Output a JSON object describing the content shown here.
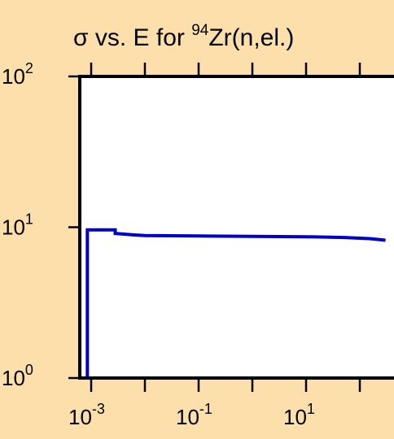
{
  "chart_data": {
    "type": "line",
    "title_parts": [
      "σ vs. E for ",
      "94",
      "Zr(n,el.)"
    ],
    "xlabel": "",
    "ylabel": "",
    "x_scale": "log",
    "y_scale": "log",
    "xlim": [
      0.0005,
      350
    ],
    "ylim": [
      1,
      100
    ],
    "x_ticks": [
      {
        "base": "10",
        "exp": "-3",
        "value": 0.001
      },
      {
        "base": "10",
        "exp": "-1",
        "value": 0.1
      },
      {
        "base": "10",
        "exp": "1",
        "value": 10
      }
    ],
    "y_ticks": [
      {
        "base": "10",
        "exp": "0",
        "value": 1
      },
      {
        "base": "10",
        "exp": "1",
        "value": 10
      },
      {
        "base": "10",
        "exp": "2",
        "value": 100
      }
    ],
    "x_minor_ticks": [
      0.01,
      1,
      100
    ],
    "grid": false,
    "series": [
      {
        "color": "#0000cc",
        "step": true,
        "x": [
          0.00085,
          0.00085,
          0.0028,
          0.006,
          0.01,
          0.1,
          1,
          10,
          50,
          150,
          300
        ],
        "y": [
          1,
          9.6,
          9.1,
          8.9,
          8.8,
          8.75,
          8.7,
          8.65,
          8.55,
          8.4,
          8.2
        ]
      }
    ]
  }
}
